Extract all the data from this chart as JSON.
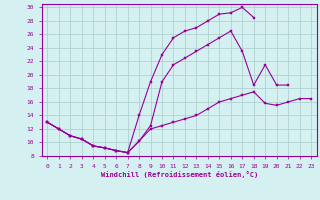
{
  "title": "",
  "xlabel": "Windchill (Refroidissement éolien,°C)",
  "ylabel": "",
  "background_color": "#d4f0f0",
  "grid_color": "#aacccc",
  "line_color": "#990099",
  "xlim": [
    -0.5,
    23.5
  ],
  "ylim": [
    8,
    30.5
  ],
  "xticks": [
    0,
    1,
    2,
    3,
    4,
    5,
    6,
    7,
    8,
    9,
    10,
    11,
    12,
    13,
    14,
    15,
    16,
    17,
    18,
    19,
    20,
    21,
    22,
    23
  ],
  "yticks": [
    8,
    10,
    12,
    14,
    16,
    18,
    20,
    22,
    24,
    26,
    28,
    30
  ],
  "curve1_x": [
    0,
    1,
    2,
    3,
    4,
    5,
    6,
    7,
    8,
    9,
    10,
    11,
    12,
    13,
    14,
    15,
    16,
    17,
    18,
    19,
    20,
    21,
    22,
    23
  ],
  "curve1_y": [
    13,
    12,
    11,
    10.5,
    9.5,
    9.2,
    8.8,
    8.5,
    10.2,
    12,
    12.5,
    13,
    13.5,
    14,
    15,
    16,
    16.5,
    17,
    17.5,
    15.8,
    15.5,
    16,
    16.5,
    16.5
  ],
  "curve2_x": [
    0,
    1,
    2,
    3,
    4,
    5,
    6,
    7,
    8,
    9,
    10,
    11,
    12,
    13,
    14,
    15,
    16,
    17,
    18
  ],
  "curve2_y": [
    13,
    12,
    11,
    10.5,
    9.5,
    9.2,
    8.8,
    8.5,
    14,
    19,
    23,
    25.5,
    26.5,
    27,
    28,
    29,
    29.2,
    30,
    28.5
  ],
  "curve3_x": [
    0,
    1,
    2,
    3,
    4,
    5,
    6,
    7,
    8,
    9,
    10,
    11,
    12,
    13,
    14,
    15,
    16,
    17,
    18,
    19,
    20,
    21
  ],
  "curve3_y": [
    13,
    12,
    11,
    10.5,
    9.5,
    9.2,
    8.8,
    8.5,
    10.2,
    12.5,
    19,
    21.5,
    22.5,
    23.5,
    24.5,
    25.5,
    26.5,
    23.5,
    18.5,
    21.5,
    18.5,
    18.5
  ]
}
